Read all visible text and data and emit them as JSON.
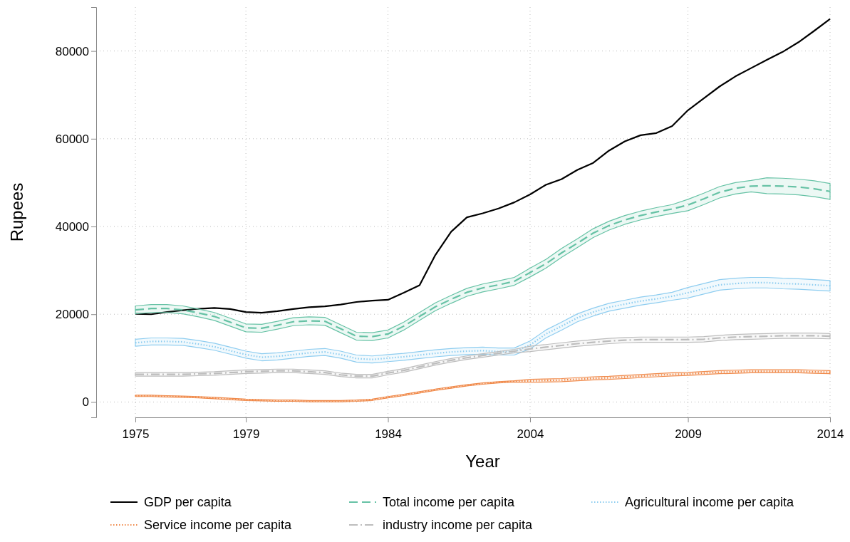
{
  "chart_data": {
    "type": "line",
    "xlabel": "Year",
    "ylabel": "Rupees",
    "categories": [
      "1975",
      null,
      null,
      null,
      null,
      null,
      null,
      "1979",
      null,
      null,
      null,
      null,
      null,
      null,
      null,
      null,
      "1984",
      null,
      null,
      null,
      null,
      null,
      null,
      null,
      null,
      "2004",
      null,
      null,
      null,
      null,
      null,
      null,
      null,
      null,
      null,
      "2009",
      null,
      null,
      null,
      null,
      null,
      null,
      null,
      null,
      "2014"
    ],
    "ylim": [
      -3500,
      90000
    ],
    "yticks": [
      0,
      20000,
      40000,
      60000,
      80000
    ],
    "grid": true,
    "legend": "bottom",
    "marker": "none",
    "series": [
      {
        "name": "GDP per capita",
        "color": "#000000",
        "line_style": "solid",
        "values": [
          20100,
          20000,
          20500,
          20900,
          21250,
          21450,
          21200,
          20500,
          20350,
          20700,
          21200,
          21600,
          21800,
          22200,
          22800,
          23100,
          23300,
          24900,
          26600,
          33500,
          38800,
          42100,
          43000,
          44100,
          45500,
          47300,
          49500,
          50800,
          52900,
          54500,
          57300,
          59400,
          60800,
          61300,
          62900,
          66500,
          69200,
          71900,
          74200,
          76100,
          78000,
          79800,
          82000,
          84600,
          87300
        ]
      },
      {
        "name": "Total income per capita",
        "color": "#66c2a5",
        "line_style": "dashed",
        "values": [
          21000,
          21300,
          21300,
          21000,
          20300,
          19500,
          18200,
          16900,
          16800,
          17500,
          18300,
          18500,
          18400,
          16700,
          15000,
          14900,
          15500,
          17300,
          19500,
          21700,
          23400,
          25000,
          26000,
          26700,
          27500,
          29500,
          31500,
          34000,
          36200,
          38500,
          40200,
          41500,
          42500,
          43300,
          44000,
          44900,
          46300,
          47800,
          48700,
          49200,
          49300,
          49200,
          49000,
          48600,
          48000
        ],
        "lower": [
          20100,
          20400,
          20400,
          20100,
          19400,
          18600,
          17300,
          16000,
          15900,
          16600,
          17400,
          17600,
          17500,
          15800,
          14100,
          14000,
          14600,
          16400,
          18600,
          20800,
          22500,
          24100,
          25100,
          25800,
          26600,
          28500,
          30500,
          33000,
          35200,
          37500,
          39200,
          40500,
          41500,
          42300,
          43000,
          43600,
          45000,
          46500,
          47400,
          47900,
          47500,
          47400,
          47200,
          46800,
          46200
        ],
        "upper": [
          21900,
          22200,
          22200,
          21900,
          21200,
          20400,
          19100,
          17800,
          17700,
          18400,
          19200,
          19400,
          19300,
          17600,
          15900,
          15800,
          16400,
          18200,
          20400,
          22600,
          24300,
          25900,
          26900,
          27600,
          28400,
          30500,
          32500,
          35000,
          37200,
          39500,
          41200,
          42500,
          43500,
          44300,
          45000,
          46200,
          47600,
          49100,
          50000,
          50500,
          51100,
          51000,
          50800,
          50400,
          49800
        ]
      },
      {
        "name": "Agricultural income per capita",
        "color": "#8ecdf0",
        "line_style": "dotted",
        "values": [
          13500,
          13800,
          13800,
          13700,
          13200,
          12600,
          11700,
          10800,
          10200,
          10400,
          10800,
          11200,
          11400,
          10800,
          9900,
          9700,
          10000,
          10300,
          10700,
          11100,
          11400,
          11600,
          11700,
          11500,
          11500,
          13000,
          15500,
          17300,
          19200,
          20500,
          21600,
          22300,
          23000,
          23500,
          24100,
          24900,
          25800,
          26700,
          27000,
          27200,
          27200,
          27000,
          26900,
          26700,
          26500
        ],
        "lower": [
          12700,
          13000,
          13000,
          12900,
          12400,
          11800,
          10900,
          10000,
          9400,
          9600,
          10000,
          10400,
          10600,
          10000,
          9100,
          8900,
          9200,
          9500,
          9900,
          10300,
          10600,
          10800,
          10900,
          10700,
          10700,
          12100,
          14600,
          16400,
          18300,
          19600,
          20700,
          21400,
          22100,
          22600,
          23200,
          23700,
          24600,
          25500,
          25800,
          26000,
          26000,
          25800,
          25700,
          25500,
          25300
        ],
        "upper": [
          14300,
          14600,
          14600,
          14500,
          14000,
          13400,
          12500,
          11600,
          11000,
          11200,
          11600,
          12000,
          12200,
          11600,
          10700,
          10500,
          10800,
          11100,
          11500,
          11900,
          12200,
          12400,
          12500,
          12300,
          12300,
          13900,
          16400,
          18200,
          20100,
          21400,
          22500,
          23200,
          23900,
          24400,
          25000,
          26100,
          27000,
          27900,
          28200,
          28400,
          28400,
          28200,
          28100,
          27900,
          27700
        ]
      },
      {
        "name": "Service income per capita",
        "color": "#f08a4b",
        "line_style": "dotted",
        "values": [
          1400,
          1400,
          1300,
          1200,
          1100,
          900,
          700,
          500,
          400,
          300,
          300,
          200,
          200,
          200,
          300,
          500,
          1100,
          1600,
          2200,
          2800,
          3300,
          3800,
          4200,
          4500,
          4700,
          4800,
          4900,
          5000,
          5200,
          5400,
          5500,
          5700,
          5900,
          6100,
          6300,
          6400,
          6600,
          6800,
          6900,
          7000,
          7000,
          7000,
          7000,
          6900,
          6800
        ],
        "lower": [
          1250,
          1250,
          1150,
          1050,
          950,
          750,
          550,
          350,
          250,
          150,
          150,
          50,
          50,
          50,
          150,
          350,
          950,
          1450,
          2050,
          2650,
          3150,
          3650,
          4050,
          4350,
          4550,
          4450,
          4550,
          4650,
          4850,
          5050,
          5150,
          5350,
          5550,
          5750,
          5950,
          6050,
          6250,
          6450,
          6550,
          6650,
          6650,
          6650,
          6650,
          6550,
          6450
        ],
        "upper": [
          1550,
          1550,
          1450,
          1350,
          1250,
          1050,
          850,
          650,
          550,
          450,
          450,
          350,
          350,
          350,
          450,
          650,
          1250,
          1750,
          2350,
          2950,
          3450,
          3950,
          4350,
          4650,
          4850,
          5150,
          5250,
          5350,
          5550,
          5750,
          5850,
          6050,
          6250,
          6450,
          6650,
          6750,
          6950,
          7150,
          7250,
          7350,
          7350,
          7350,
          7350,
          7250,
          7150
        ]
      },
      {
        "name": "industry income per capita",
        "color": "#bdbdbd",
        "line_style": "dashdot",
        "values": [
          6300,
          6300,
          6300,
          6300,
          6400,
          6500,
          6700,
          6900,
          7000,
          7100,
          7100,
          6900,
          6700,
          6200,
          5900,
          5900,
          6600,
          7200,
          8000,
          8800,
          9500,
          10100,
          10600,
          11100,
          11600,
          12100,
          12500,
          12900,
          13300,
          13600,
          13900,
          14100,
          14200,
          14200,
          14200,
          14200,
          14300,
          14600,
          14800,
          14900,
          15000,
          15100,
          15100,
          15100,
          15000
        ],
        "lower": [
          5900,
          5900,
          5900,
          5900,
          6000,
          6100,
          6300,
          6500,
          6600,
          6700,
          6700,
          6500,
          6300,
          5800,
          5500,
          5500,
          6200,
          6800,
          7600,
          8400,
          9100,
          9700,
          10200,
          10700,
          11200,
          11500,
          11900,
          12300,
          12700,
          13000,
          13300,
          13500,
          13600,
          13600,
          13600,
          13600,
          13700,
          14000,
          14200,
          14300,
          14400,
          14500,
          14500,
          14500,
          14400
        ],
        "upper": [
          6700,
          6700,
          6700,
          6700,
          6800,
          6900,
          7100,
          7300,
          7400,
          7500,
          7500,
          7300,
          7100,
          6600,
          6300,
          6300,
          7000,
          7600,
          8400,
          9200,
          9900,
          10500,
          11000,
          11500,
          12000,
          12700,
          13100,
          13500,
          13900,
          14200,
          14500,
          14700,
          14800,
          14800,
          14800,
          14800,
          14900,
          15200,
          15400,
          15500,
          15600,
          15700,
          15700,
          15700,
          15600
        ]
      }
    ]
  }
}
